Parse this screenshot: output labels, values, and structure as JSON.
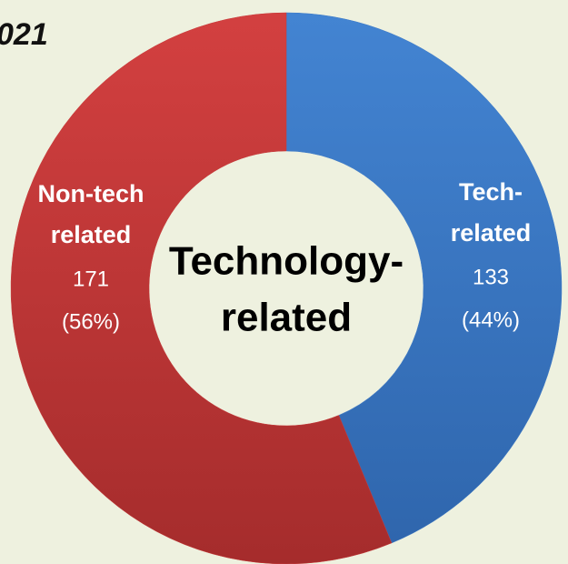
{
  "chart_data": {
    "type": "donut",
    "title": "021",
    "categories": [
      [
        "Tech-",
        "related"
      ],
      [
        "Non-tech",
        "related"
      ]
    ],
    "values": [
      133,
      171
    ],
    "percent_labels": [
      "(44%)",
      "(56%)"
    ],
    "colors": [
      "#3b78c6",
      "#c63a3a"
    ],
    "center_label": [
      "Technology-",
      "related"
    ]
  }
}
